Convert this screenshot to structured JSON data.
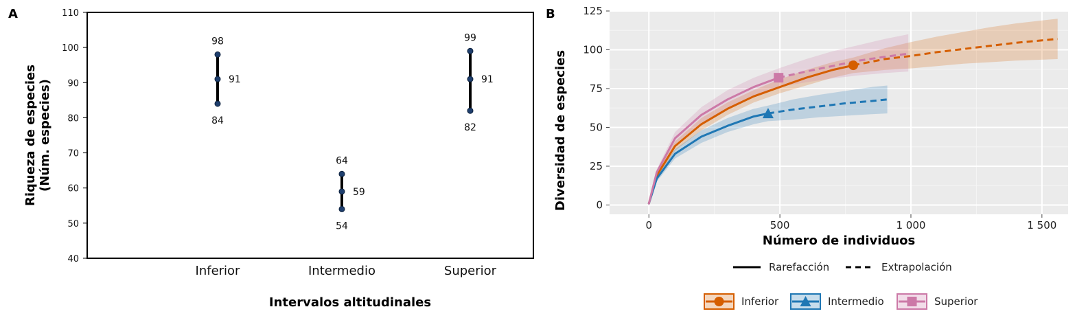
{
  "chart_data": [
    {
      "panel": "A",
      "type": "scatter",
      "xlabel": "Intervalos altitudinales",
      "ylabel": [
        "Riqueza de especies",
        "(Núm. especies)"
      ],
      "ylim": [
        40,
        110
      ],
      "yticks": [
        40,
        50,
        60,
        70,
        80,
        90,
        100,
        110
      ],
      "categories": [
        "Inferior",
        "Intermedio",
        "Superior"
      ],
      "points": [
        {
          "category": "Inferior",
          "low": 84,
          "mid": 91,
          "high": 98
        },
        {
          "category": "Intermedio",
          "low": 54,
          "mid": 59,
          "high": 64
        },
        {
          "category": "Superior",
          "low": 82,
          "mid": 91,
          "high": 99
        }
      ],
      "colors": {
        "interval": "#000000",
        "point": "#1f3f6e"
      }
    },
    {
      "panel": "B",
      "type": "line",
      "xlabel": "Número de individuos",
      "ylabel": "Diversidad de especies",
      "xlim": [
        -150,
        1600
      ],
      "ylim": [
        -6,
        125
      ],
      "xticks": [
        0,
        500,
        1000,
        1500
      ],
      "xtick_labels": [
        "0",
        "500",
        "1 000",
        "1 500"
      ],
      "yticks": [
        0,
        25,
        50,
        75,
        100,
        125
      ],
      "grid": true,
      "background": "#ebebeb",
      "legend_method": {
        "rarefaction": "Rarefacción",
        "extrapolation": "Extrapolación"
      },
      "series": [
        {
          "name": "Inferior",
          "color": "#d55e00",
          "marker": "circle",
          "observed": [
            780,
            90
          ],
          "rarefaction": [
            [
              0,
              1
            ],
            [
              30,
              19
            ],
            [
              100,
              38
            ],
            [
              200,
              52
            ],
            [
              300,
              62
            ],
            [
              400,
              70
            ],
            [
              500,
              76
            ],
            [
              600,
              82
            ],
            [
              700,
              87
            ],
            [
              780,
              90
            ]
          ],
          "extrapolation": [
            [
              780,
              90
            ],
            [
              900,
              94
            ],
            [
              1000,
              96
            ],
            [
              1100,
              98.5
            ],
            [
              1200,
              100.5
            ],
            [
              1300,
              102.5
            ],
            [
              1400,
              104.5
            ],
            [
              1560,
              107
            ]
          ],
          "ci_upper": [
            [
              0,
              1
            ],
            [
              30,
              21
            ],
            [
              100,
              41
            ],
            [
              200,
              56
            ],
            [
              300,
              66
            ],
            [
              400,
              74
            ],
            [
              500,
              81
            ],
            [
              600,
              87
            ],
            [
              700,
              92
            ],
            [
              780,
              95
            ],
            [
              900,
              101
            ],
            [
              1000,
              105
            ],
            [
              1100,
              108.5
            ],
            [
              1200,
              111.5
            ],
            [
              1300,
              114.5
            ],
            [
              1400,
              117
            ],
            [
              1560,
              120
            ]
          ],
          "ci_lower": [
            [
              0,
              1
            ],
            [
              30,
              17
            ],
            [
              100,
              35
            ],
            [
              200,
              48
            ],
            [
              300,
              58
            ],
            [
              400,
              66
            ],
            [
              500,
              72
            ],
            [
              600,
              77
            ],
            [
              700,
              82
            ],
            [
              780,
              85
            ],
            [
              900,
              87
            ],
            [
              1000,
              88
            ],
            [
              1100,
              89.5
            ],
            [
              1200,
              91
            ],
            [
              1300,
              92
            ],
            [
              1400,
              93
            ],
            [
              1560,
              94
            ]
          ]
        },
        {
          "name": "Intermedio",
          "color": "#1f77b4",
          "marker": "triangle",
          "observed": [
            455,
            59
          ],
          "rarefaction": [
            [
              0,
              1
            ],
            [
              30,
              17
            ],
            [
              100,
              33
            ],
            [
              200,
              44
            ],
            [
              300,
              51
            ],
            [
              400,
              57
            ],
            [
              455,
              59
            ]
          ],
          "extrapolation": [
            [
              455,
              59
            ],
            [
              550,
              61.5
            ],
            [
              650,
              63.5
            ],
            [
              750,
              65.5
            ],
            [
              850,
              67
            ],
            [
              910,
              68
            ]
          ],
          "ci_upper": [
            [
              0,
              1
            ],
            [
              30,
              19
            ],
            [
              100,
              36
            ],
            [
              200,
              48
            ],
            [
              300,
              56
            ],
            [
              400,
              62
            ],
            [
              455,
              64
            ],
            [
              550,
              68
            ],
            [
              650,
              71
            ],
            [
              750,
              73.5
            ],
            [
              850,
              76
            ],
            [
              910,
              77
            ]
          ],
          "ci_lower": [
            [
              0,
              1
            ],
            [
              30,
              15
            ],
            [
              100,
              30
            ],
            [
              200,
              40
            ],
            [
              300,
              47
            ],
            [
              400,
              52
            ],
            [
              455,
              54
            ],
            [
              550,
              55
            ],
            [
              650,
              56.5
            ],
            [
              750,
              57.5
            ],
            [
              850,
              58.5
            ],
            [
              910,
              59
            ]
          ]
        },
        {
          "name": "Superior",
          "color": "#cc79a7",
          "marker": "square",
          "observed": [
            495,
            82
          ],
          "rarefaction": [
            [
              0,
              1
            ],
            [
              30,
              21
            ],
            [
              100,
              43
            ],
            [
              200,
              58
            ],
            [
              300,
              68
            ],
            [
              400,
              76
            ],
            [
              495,
              82
            ]
          ],
          "extrapolation": [
            [
              495,
              82
            ],
            [
              600,
              86
            ],
            [
              700,
              89.5
            ],
            [
              800,
              93
            ],
            [
              900,
              95.5
            ],
            [
              990,
              97.5
            ]
          ],
          "ci_upper": [
            [
              0,
              1
            ],
            [
              30,
              23
            ],
            [
              100,
              47
            ],
            [
              200,
              63
            ],
            [
              300,
              74
            ],
            [
              400,
              82
            ],
            [
              495,
              88
            ],
            [
              600,
              94
            ],
            [
              700,
              99
            ],
            [
              800,
              103
            ],
            [
              900,
              107
            ],
            [
              990,
              110
            ]
          ],
          "ci_lower": [
            [
              0,
              1
            ],
            [
              30,
              19
            ],
            [
              100,
              39
            ],
            [
              200,
              53
            ],
            [
              300,
              62
            ],
            [
              400,
              70
            ],
            [
              495,
              76
            ],
            [
              600,
              79
            ],
            [
              700,
              81.5
            ],
            [
              800,
              83.5
            ],
            [
              900,
              85
            ],
            [
              990,
              86
            ]
          ]
        }
      ]
    }
  ]
}
